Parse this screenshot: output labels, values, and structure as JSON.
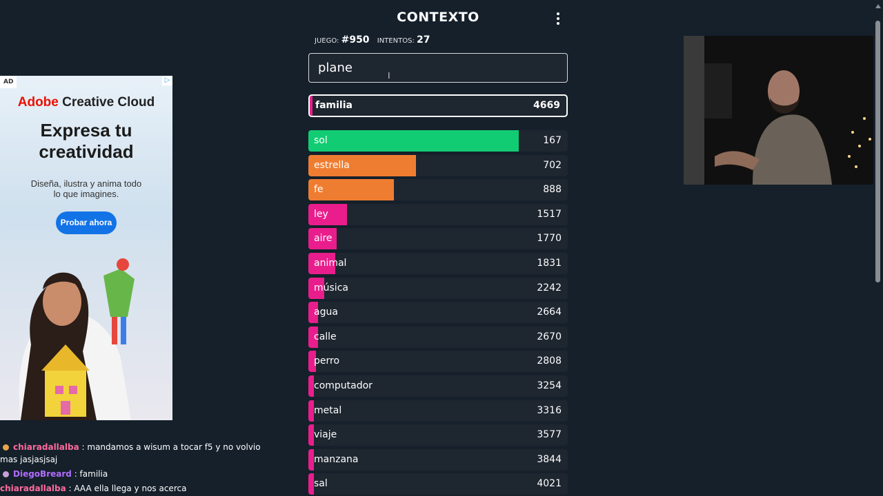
{
  "header": {
    "title": "CONTEXTO",
    "juego_label": "JUEGO:",
    "juego_value": "#950",
    "intentos_label": "INTENTOS:",
    "intentos_value": "27"
  },
  "input": {
    "value": "plane"
  },
  "latest_guess": {
    "word": "familia",
    "score": "4669",
    "color": "#e91e8c",
    "fill_fraction": 0.008
  },
  "guesses": [
    {
      "word": "sol",
      "score": "167",
      "color": "#12cc73",
      "fill_fraction": 0.81
    },
    {
      "word": "estrella",
      "score": "702",
      "color": "#ef7d31",
      "fill_fraction": 0.415
    },
    {
      "word": "fe",
      "score": "888",
      "color": "#ef7d31",
      "fill_fraction": 0.33
    },
    {
      "word": "ley",
      "score": "1517",
      "color": "#e91e8c",
      "fill_fraction": 0.15
    },
    {
      "word": "aire",
      "score": "1770",
      "color": "#e91e8c",
      "fill_fraction": 0.11
    },
    {
      "word": "animal",
      "score": "1831",
      "color": "#e91e8c",
      "fill_fraction": 0.105
    },
    {
      "word": "música",
      "score": "2242",
      "color": "#e91e8c",
      "fill_fraction": 0.06
    },
    {
      "word": "agua",
      "score": "2664",
      "color": "#e91e8c",
      "fill_fraction": 0.038
    },
    {
      "word": "calle",
      "score": "2670",
      "color": "#e91e8c",
      "fill_fraction": 0.036
    },
    {
      "word": "perro",
      "score": "2808",
      "color": "#e91e8c",
      "fill_fraction": 0.03
    },
    {
      "word": "computador",
      "score": "3254",
      "color": "#e91e8c",
      "fill_fraction": 0.015
    },
    {
      "word": "metal",
      "score": "3316",
      "color": "#e91e8c",
      "fill_fraction": 0.014
    },
    {
      "word": "viaje",
      "score": "3577",
      "color": "#e91e8c",
      "fill_fraction": 0.012
    },
    {
      "word": "manzana",
      "score": "3844",
      "color": "#e91e8c",
      "fill_fraction": 0.011
    },
    {
      "word": "sal",
      "score": "4021",
      "color": "#e91e8c",
      "fill_fraction": 0.01
    }
  ],
  "ad": {
    "tag": "AD",
    "brand": "Adobe",
    "product": "Creative Cloud",
    "headline_1": "Expresa tu",
    "headline_2": "creatividad",
    "body_1": "Diseña, ilustra y anima todo",
    "body_2": "lo que imagines.",
    "cta": "Probar ahora"
  },
  "chat": [
    {
      "user": "chiaradallalba",
      "user_color": "#ff6b9d",
      "text": ": mandamos a wisum a tocar f5 y no volvio mas jasjasjsaj"
    },
    {
      "user": "DiegoBreard",
      "user_color": "#b36bff",
      "text": ": familia"
    },
    {
      "user": "chiaradallalba",
      "user_color": "#ff6b9d",
      "text": ": AAA ella llega y nos acerca"
    }
  ]
}
